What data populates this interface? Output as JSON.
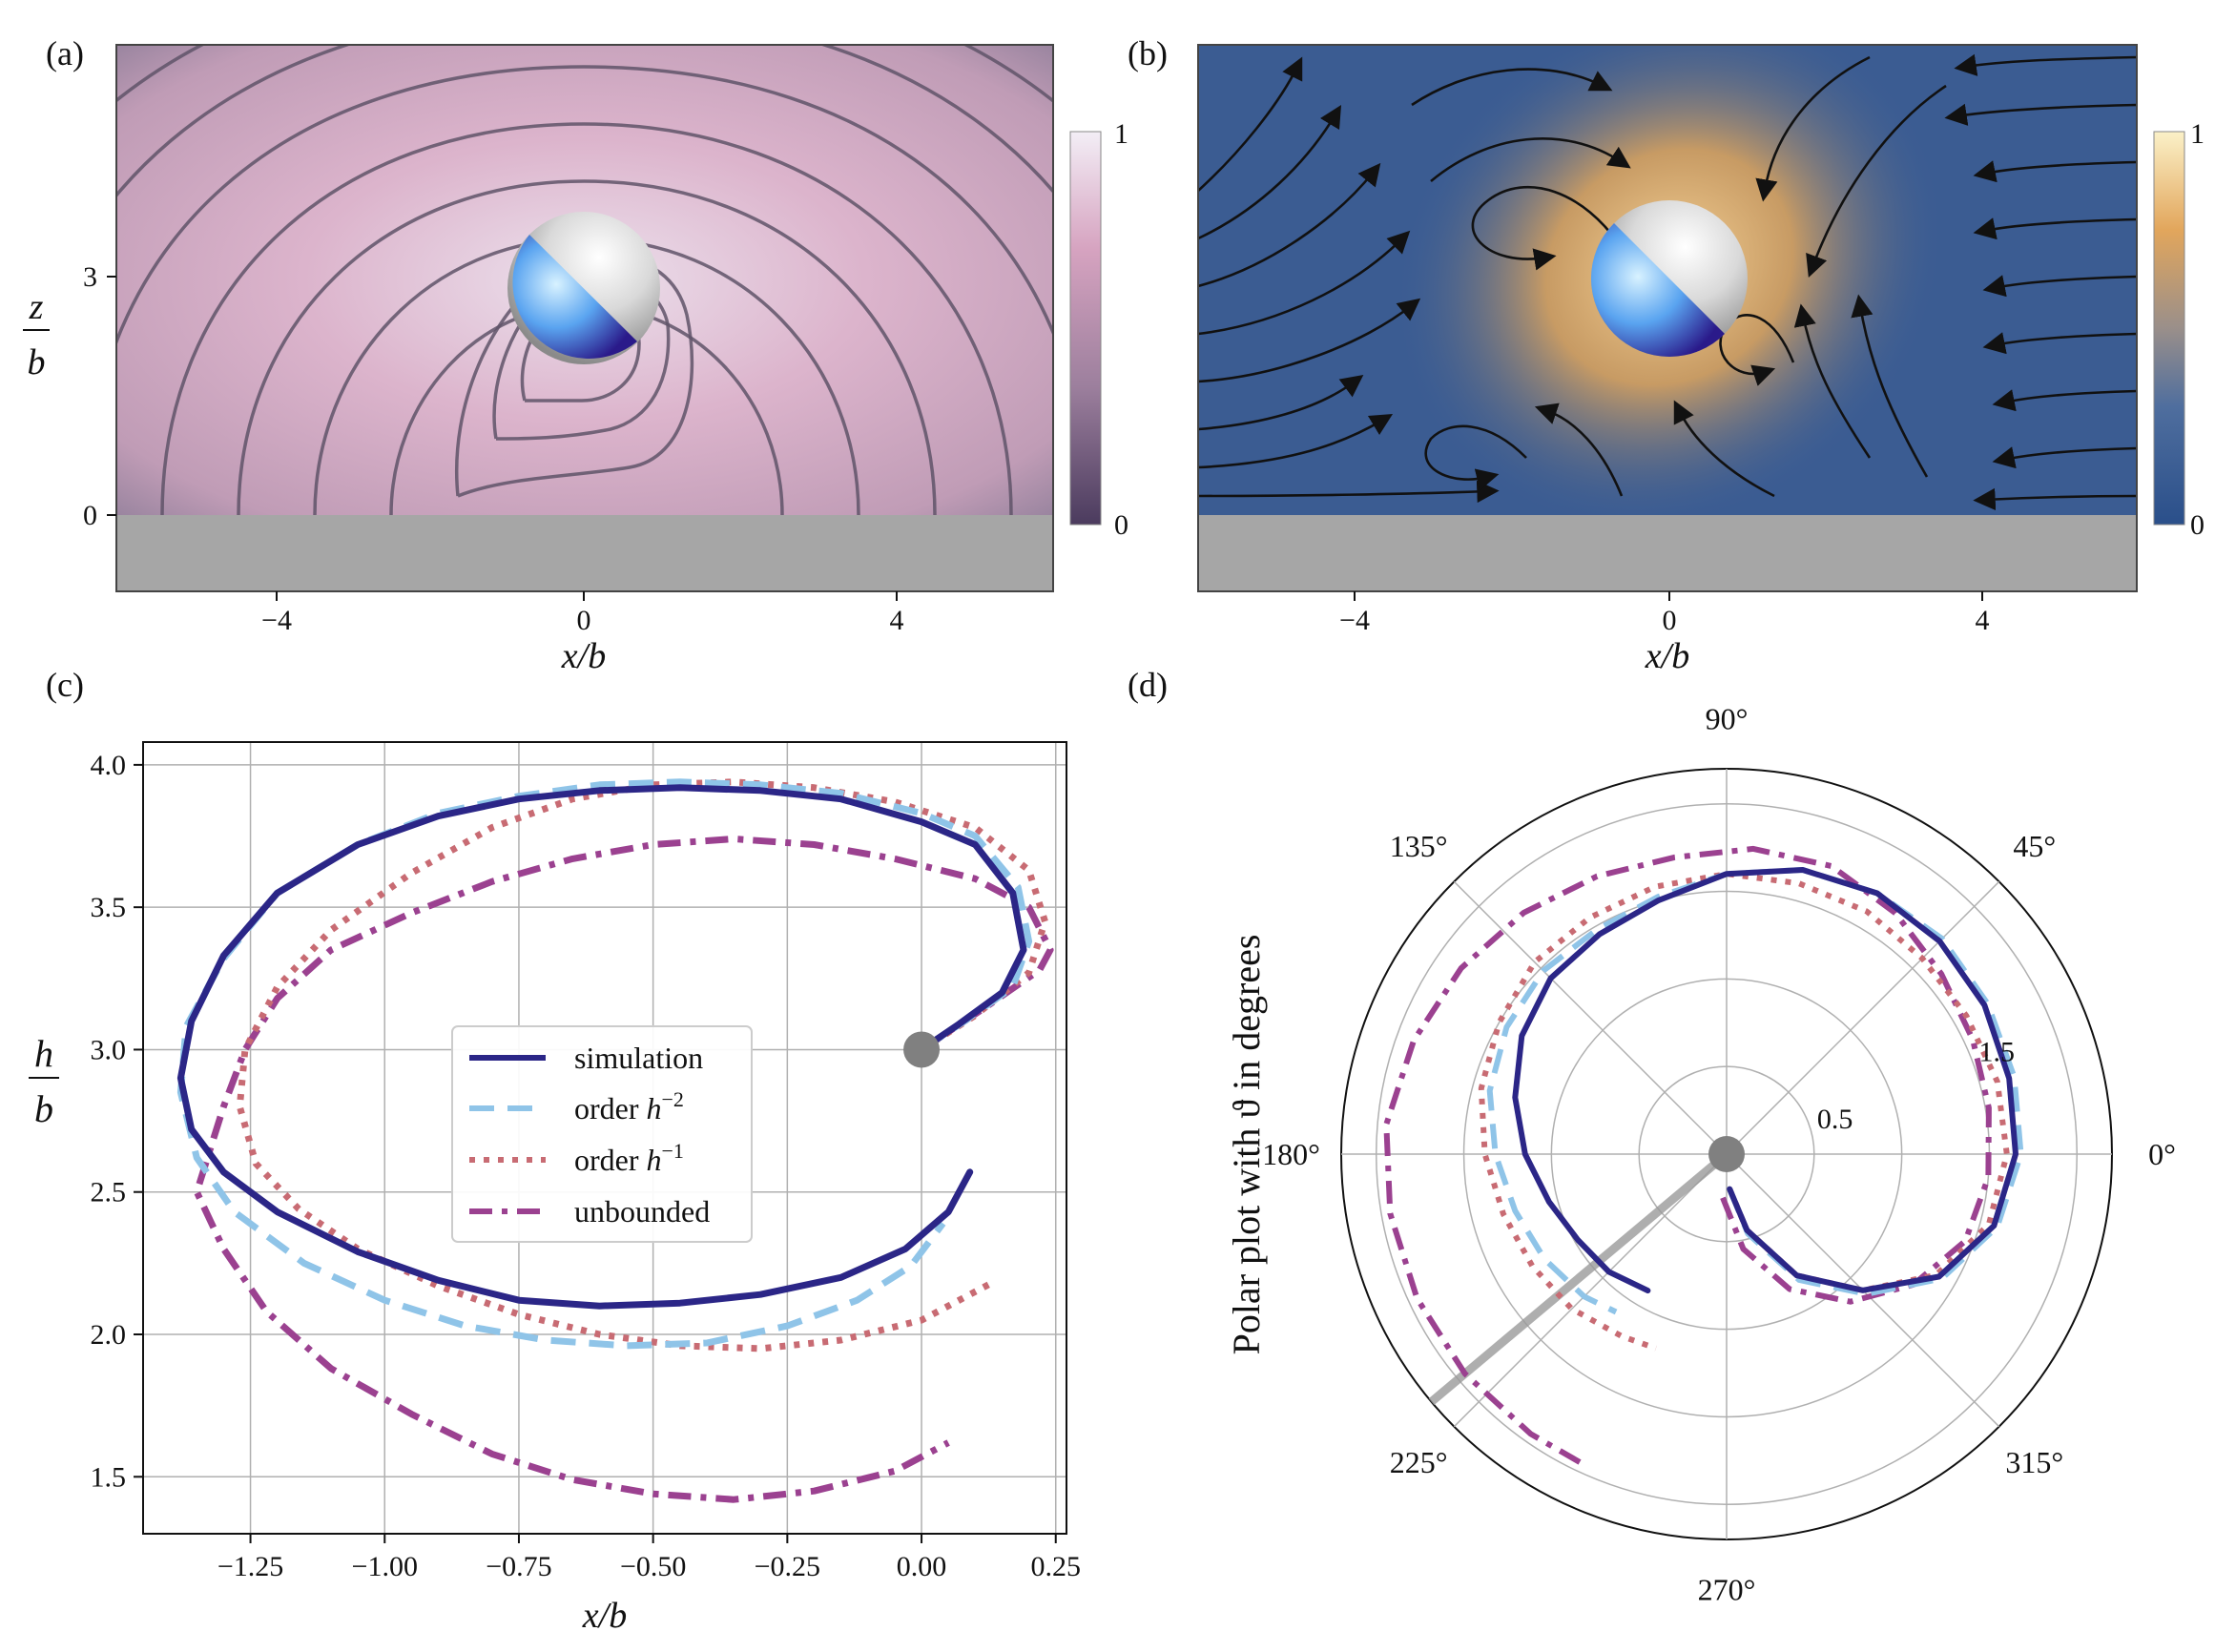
{
  "panels": {
    "a": {
      "tag": "(a)",
      "xlabel": "x/b",
      "ylabel_num": "z",
      "ylabel_den": "b",
      "xticks": [
        "−4",
        "0",
        "4"
      ],
      "yticks": [
        "0",
        "3"
      ],
      "colorbar": {
        "max": "1",
        "min": "0"
      }
    },
    "b": {
      "tag": "(b)",
      "xlabel": "x/b",
      "xticks": [
        "−4",
        "0",
        "4"
      ],
      "colorbar": {
        "max": "1",
        "min": "0"
      }
    },
    "c": {
      "tag": "(c)"
    },
    "d": {
      "tag": "(d)"
    }
  },
  "colors": {
    "simulation": "#2b2687",
    "order_h2": "#8fc4e8",
    "order_h1": "#c86b73",
    "unbounded": "#9b4190",
    "marker": "#808080",
    "wall": "#a6a6a6"
  },
  "chart_data": [
    {
      "type": "line",
      "panel": "c",
      "xlabel": "x/b",
      "ylabel_num": "h",
      "ylabel_den": "b",
      "xlim": [
        -1.45,
        0.27
      ],
      "ylim": [
        1.3,
        4.08
      ],
      "xticks": [
        -1.25,
        -1.0,
        -0.75,
        -0.5,
        -0.25,
        0.0,
        0.25
      ],
      "xtick_labels": [
        "−1.25",
        "−1.00",
        "−0.75",
        "−0.50",
        "−0.25",
        "0.00",
        "0.25"
      ],
      "yticks": [
        1.5,
        2.0,
        2.5,
        3.0,
        3.5,
        4.0
      ],
      "ytick_labels": [
        "1.5",
        "2.0",
        "2.5",
        "3.0",
        "3.5",
        "4.0"
      ],
      "grid": true,
      "legend_position": "center",
      "start_point": {
        "x": 0.0,
        "y": 3.0
      },
      "series": [
        {
          "name": "simulation",
          "style": "solid",
          "x": [
            0.0,
            0.07,
            0.15,
            0.19,
            0.17,
            0.1,
            0.0,
            -0.15,
            -0.3,
            -0.45,
            -0.6,
            -0.75,
            -0.9,
            -1.05,
            -1.2,
            -1.3,
            -1.36,
            -1.38,
            -1.36,
            -1.3,
            -1.2,
            -1.05,
            -0.9,
            -0.75,
            -0.6,
            -0.45,
            -0.3,
            -0.15,
            -0.03,
            0.05,
            0.09
          ],
          "y": [
            3.0,
            3.09,
            3.2,
            3.35,
            3.55,
            3.72,
            3.8,
            3.88,
            3.91,
            3.92,
            3.91,
            3.88,
            3.82,
            3.72,
            3.55,
            3.33,
            3.1,
            2.9,
            2.72,
            2.57,
            2.43,
            2.29,
            2.19,
            2.12,
            2.1,
            2.11,
            2.14,
            2.2,
            2.3,
            2.43,
            2.57
          ]
        },
        {
          "name": "order h^{-2}",
          "name_prefix": "order ",
          "name_base": "h",
          "name_exp": "−2",
          "style": "dashed",
          "x": [
            0.0,
            0.08,
            0.17,
            0.2,
            0.18,
            0.1,
            0.0,
            -0.15,
            -0.3,
            -0.45,
            -0.6,
            -0.75,
            -0.9,
            -1.05,
            -1.2,
            -1.3,
            -1.37,
            -1.38,
            -1.35,
            -1.28,
            -1.15,
            -1.0,
            -0.85,
            -0.7,
            -0.55,
            -0.4,
            -0.25,
            -0.12,
            -0.02,
            0.04
          ],
          "y": [
            3.0,
            3.1,
            3.22,
            3.38,
            3.57,
            3.75,
            3.83,
            3.9,
            3.93,
            3.94,
            3.93,
            3.89,
            3.83,
            3.72,
            3.55,
            3.32,
            3.08,
            2.85,
            2.62,
            2.43,
            2.25,
            2.12,
            2.03,
            1.98,
            1.96,
            1.97,
            2.03,
            2.12,
            2.24,
            2.39
          ]
        },
        {
          "name": "order h^{-1}",
          "name_prefix": "order ",
          "name_base": "h",
          "name_exp": "−1",
          "style": "dotted",
          "x": [
            0.0,
            0.1,
            0.2,
            0.23,
            0.2,
            0.1,
            -0.05,
            -0.2,
            -0.35,
            -0.5,
            -0.65,
            -0.8,
            -0.95,
            -1.1,
            -1.2,
            -1.26,
            -1.27,
            -1.24,
            -1.16,
            -1.05,
            -0.9,
            -0.75,
            -0.6,
            -0.45,
            -0.3,
            -0.15,
            0.0,
            0.13
          ],
          "y": [
            3.0,
            3.12,
            3.27,
            3.45,
            3.63,
            3.78,
            3.87,
            3.92,
            3.94,
            3.93,
            3.88,
            3.78,
            3.62,
            3.42,
            3.22,
            3.0,
            2.8,
            2.6,
            2.44,
            2.3,
            2.17,
            2.07,
            2.0,
            1.96,
            1.95,
            1.98,
            2.05,
            2.18
          ]
        },
        {
          "name": "unbounded",
          "style": "dashdot",
          "x": [
            0.0,
            0.12,
            0.22,
            0.24,
            0.2,
            0.1,
            -0.05,
            -0.2,
            -0.35,
            -0.5,
            -0.65,
            -0.8,
            -0.95,
            -1.1,
            -1.2,
            -1.26,
            -1.3,
            -1.33,
            -1.35,
            -1.3,
            -1.22,
            -1.1,
            -0.95,
            -0.8,
            -0.65,
            -0.5,
            -0.35,
            -0.2,
            -0.05,
            0.05
          ],
          "y": [
            3.0,
            3.15,
            3.28,
            3.35,
            3.5,
            3.6,
            3.67,
            3.72,
            3.74,
            3.72,
            3.67,
            3.59,
            3.48,
            3.35,
            3.18,
            3.0,
            2.8,
            2.62,
            2.5,
            2.3,
            2.08,
            1.88,
            1.72,
            1.58,
            1.49,
            1.44,
            1.42,
            1.45,
            1.52,
            1.62
          ]
        }
      ]
    },
    {
      "type": "line",
      "panel": "d",
      "projection": "polar",
      "title": "Polar plot with ϑ in degrees",
      "theta_labels": [
        "0°",
        "45°",
        "90°",
        "135°",
        "180°",
        "225°",
        "270°",
        "315°"
      ],
      "r_ticks": [
        0.5,
        1.0,
        1.5,
        2.0
      ],
      "r_tick_labels": [
        "0.5",
        "",
        "1.5",
        ""
      ],
      "rmax": 2.2,
      "start_point": {
        "theta_deg": 0,
        "r": 0.0
      },
      "series": [
        {
          "name": "simulation",
          "style": "solid",
          "theta_deg": [
            275,
            285,
            300,
            315,
            330,
            345,
            0,
            15,
            30,
            45,
            60,
            75,
            90,
            105,
            120,
            135,
            150,
            165,
            180,
            195,
            210,
            225,
            240
          ],
          "r": [
            0.2,
            0.45,
            0.8,
            1.1,
            1.4,
            1.58,
            1.65,
            1.67,
            1.7,
            1.72,
            1.72,
            1.68,
            1.6,
            1.5,
            1.45,
            1.42,
            1.35,
            1.25,
            1.15,
            1.05,
            0.98,
            0.95,
            0.9
          ]
        },
        {
          "name": "order h^{-2}",
          "style": "dashed",
          "theta_deg": [
            275,
            285,
            300,
            315,
            330,
            345,
            0,
            15,
            30,
            45,
            60,
            75,
            90,
            105,
            120,
            135,
            150,
            165,
            180,
            195,
            210,
            225,
            235
          ],
          "r": [
            0.2,
            0.47,
            0.83,
            1.13,
            1.42,
            1.6,
            1.68,
            1.7,
            1.72,
            1.74,
            1.72,
            1.68,
            1.6,
            1.52,
            1.48,
            1.48,
            1.45,
            1.4,
            1.32,
            1.25,
            1.2,
            1.15,
            1.1
          ]
        },
        {
          "name": "order h^{-1}",
          "style": "dotted",
          "theta_deg": [
            275,
            285,
            300,
            315,
            330,
            345,
            0,
            15,
            30,
            45,
            60,
            75,
            90,
            105,
            120,
            135,
            150,
            165,
            180,
            195,
            210,
            225,
            240,
            250
          ],
          "r": [
            0.2,
            0.45,
            0.8,
            1.1,
            1.38,
            1.55,
            1.6,
            1.6,
            1.58,
            1.58,
            1.6,
            1.6,
            1.6,
            1.58,
            1.56,
            1.55,
            1.5,
            1.45,
            1.38,
            1.32,
            1.28,
            1.25,
            1.2,
            1.18
          ]
        },
        {
          "name": "unbounded",
          "style": "dashdot",
          "theta_deg": [
            265,
            280,
            295,
            310,
            325,
            340,
            355,
            10,
            25,
            40,
            55,
            70,
            85,
            100,
            115,
            130,
            145,
            160,
            175,
            190,
            205,
            220,
            235,
            245
          ],
          "r": [
            0.25,
            0.55,
            0.85,
            1.1,
            1.3,
            1.45,
            1.5,
            1.52,
            1.55,
            1.6,
            1.68,
            1.75,
            1.75,
            1.72,
            1.75,
            1.8,
            1.85,
            1.9,
            1.95,
            1.95,
            1.95,
            1.95,
            1.95,
            1.95
          ]
        }
      ]
    }
  ]
}
